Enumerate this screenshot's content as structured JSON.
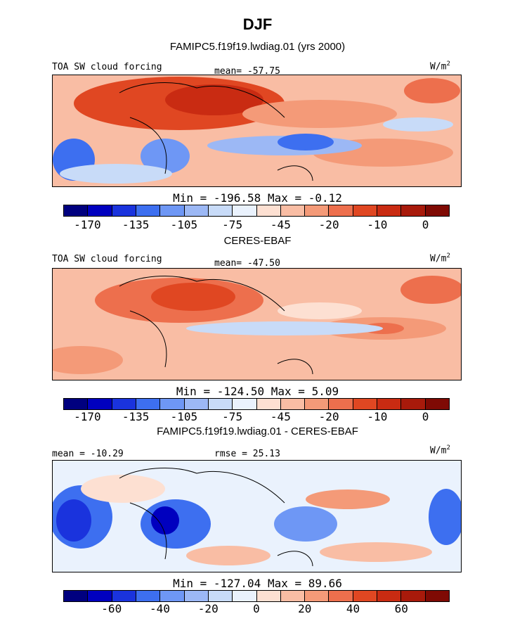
{
  "title": "DJF",
  "subtitle": "FAMIPC5.f19f19.lwdiag.01 (yrs 2000)",
  "colors": [
    "#00007f",
    "#0000bf",
    "#1a33dd",
    "#3d6ff0",
    "#6e97f5",
    "#9cb8f5",
    "#c8dbf8",
    "#eaf2fd",
    "#fde0d2",
    "#f9bda4",
    "#f49a78",
    "#ed6f4d",
    "#e04722",
    "#c92b12",
    "#a81a0b",
    "#7f0a04"
  ],
  "chart_data": [
    {
      "type": "heatmap",
      "panel_label": "TOA SW cloud forcing",
      "stat_text": "mean= -57.75",
      "units": "W/m",
      "units_sup": "2",
      "min_max_text": "Min = -196.58 Max =  -0.12",
      "colorbar_ticks": [
        "-170",
        "-135",
        "-105",
        "-75",
        "-45",
        "-20",
        "-10",
        "0"
      ],
      "mean": -57.75,
      "min": -196.58,
      "max": -0.12
    },
    {
      "type": "heatmap",
      "header": "CERES-EBAF",
      "panel_label": "TOA SW cloud forcing",
      "stat_text": "mean= -47.50",
      "units": "W/m",
      "units_sup": "2",
      "min_max_text": "Min = -124.50 Max =   5.09",
      "colorbar_ticks": [
        "-170",
        "-135",
        "-105",
        "-75",
        "-45",
        "-20",
        "-10",
        "0"
      ],
      "mean": -47.5,
      "min": -124.5,
      "max": 5.09
    },
    {
      "type": "heatmap",
      "header": "FAMIPC5.f19f19.lwdiag.01 - CERES-EBAF",
      "stat_text": "mean = -10.29",
      "rmse_text": "rmse =  25.13",
      "units": "W/m",
      "units_sup": "2",
      "min_max_text": "Min = -127.04 Max =  89.66",
      "colorbar_ticks": [
        "-60",
        "-40",
        "-20",
        "0",
        "20",
        "40",
        "60"
      ],
      "mean": -10.29,
      "rmse": 25.13,
      "min": -127.04,
      "max": 89.66
    }
  ]
}
